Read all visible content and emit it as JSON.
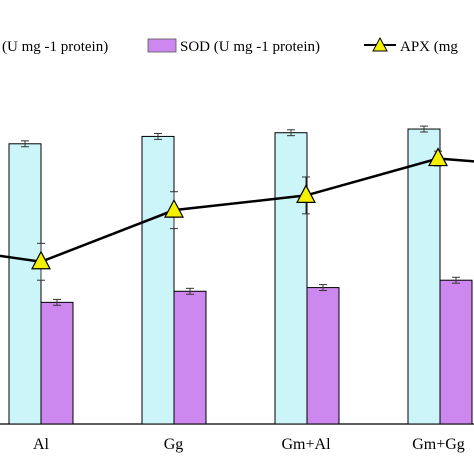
{
  "chart_data": {
    "type": "bar",
    "categories": [
      "",
      "Al",
      "Gg",
      "Gm+Al",
      "Gm+Gg",
      ""
    ],
    "series": [
      {
        "name": "(U mg -1 protein)",
        "kind": "bar",
        "color": "#ccf5fa",
        "values": [
          null,
          0.76,
          0.78,
          0.79,
          0.8,
          null
        ],
        "errors": [
          null,
          0.008,
          0.008,
          0.008,
          0.008,
          null
        ]
      },
      {
        "name": "SOD (U mg -1 protein)",
        "kind": "bar",
        "color": "#cc88ee",
        "values": [
          null,
          0.33,
          0.36,
          0.37,
          0.39,
          null
        ],
        "errors": [
          null,
          0.008,
          0.008,
          0.008,
          0.008,
          null
        ]
      },
      {
        "name": "APX (mg",
        "kind": "line",
        "color": "#000000",
        "marker_color": "#f5f000",
        "values": [
          0.46,
          0.44,
          0.58,
          0.62,
          0.72,
          0.71
        ],
        "errors": [
          null,
          0.05,
          0.05,
          0.05,
          0.02,
          null
        ]
      }
    ],
    "ylim": [
      0,
      1.15
    ],
    "legend_position": "top"
  }
}
